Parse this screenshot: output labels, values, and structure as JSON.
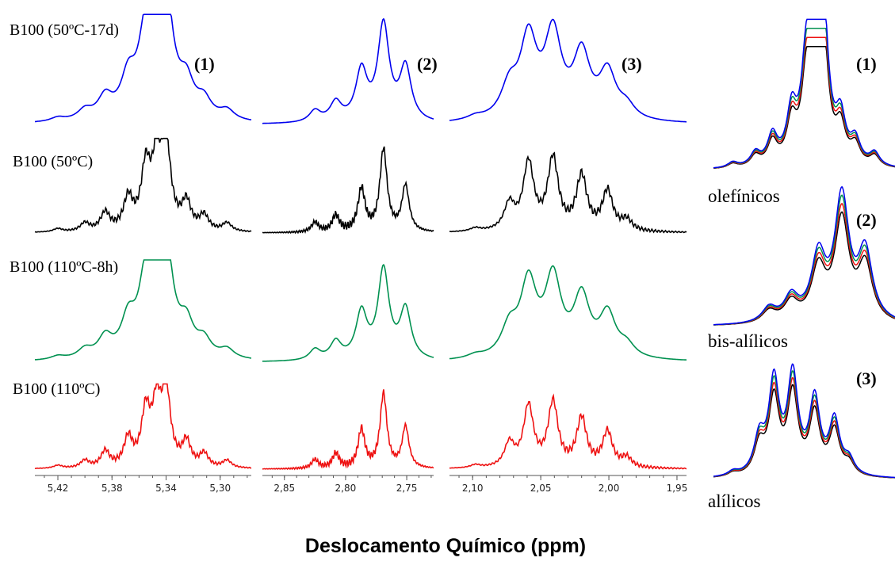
{
  "chart_data": {
    "type": "line",
    "xlabel": "Deslocamento Químico (ppm)",
    "series": [
      {
        "name": "B100 (50ºC-17d)",
        "color": "#0000ee"
      },
      {
        "name": "B100 (50ºC)",
        "color": "#000000"
      },
      {
        "name": "B100 (110ºC-8h)",
        "color": "#009150"
      },
      {
        "name": "B100 (110ºC)",
        "color": "#ee1111"
      }
    ],
    "panels": [
      {
        "label": "(1)",
        "xlim": [
          5.437,
          5.277
        ],
        "xticks": [
          5.42,
          5.38,
          5.34,
          5.3
        ],
        "xticklabels": [
          "5,42",
          "5,38",
          "5,34",
          "5,30"
        ],
        "peaks_ppm": [
          5.42,
          5.4,
          5.385,
          5.368,
          5.355,
          5.347,
          5.34,
          5.325,
          5.312,
          5.295
        ],
        "peaks_rel_height": [
          0.04,
          0.1,
          0.22,
          0.38,
          0.72,
          0.78,
          1.0,
          0.33,
          0.18,
          0.1
        ]
      },
      {
        "label": "(2)",
        "xlim": [
          2.868,
          2.728
        ],
        "xticks": [
          2.85,
          2.8,
          2.75
        ],
        "xticklabels": [
          "2,85",
          "2,80",
          "2,75"
        ],
        "peaks_ppm": [
          2.825,
          2.808,
          2.787,
          2.769,
          2.751
        ],
        "peaks_rel_height": [
          0.12,
          0.2,
          0.52,
          1.0,
          0.56
        ]
      },
      {
        "label": "(3)",
        "xlim": [
          2.117,
          1.943
        ],
        "xticks": [
          2.1,
          2.05,
          2.0,
          1.95
        ],
        "xticklabels": [
          "2,10",
          "2,05",
          "2,00",
          "1,95"
        ],
        "peaks_ppm": [
          2.098,
          2.073,
          2.059,
          2.041,
          2.02,
          2.001,
          1.987
        ],
        "peaks_rel_height": [
          0.04,
          0.32,
          0.82,
          0.87,
          0.66,
          0.48,
          0.13
        ]
      }
    ],
    "insets": [
      {
        "label": "(1)",
        "name": "olefínicos"
      },
      {
        "label": "(2)",
        "name": "bis-alílicos"
      },
      {
        "label": "(3)",
        "name": "alílicos"
      }
    ]
  }
}
